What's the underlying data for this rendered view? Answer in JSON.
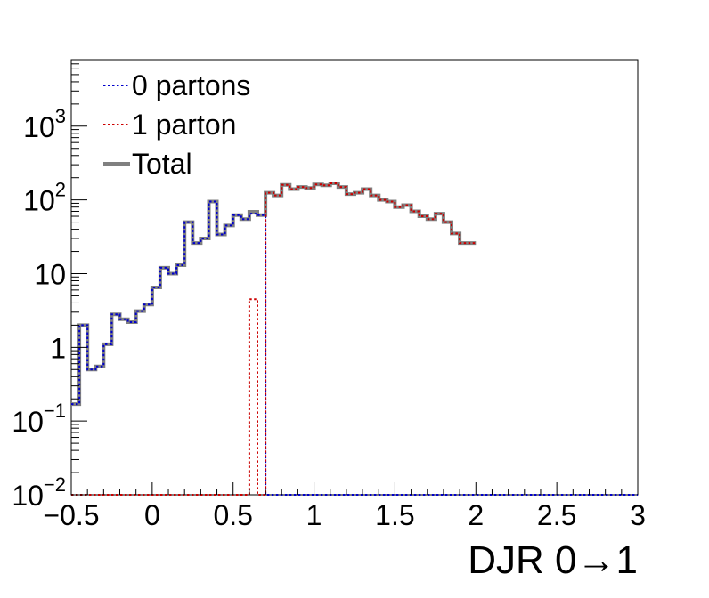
{
  "chart_data": {
    "type": "histogram",
    "title": "",
    "xlabel": "DJR 0→1",
    "ylabel": "",
    "xlim": [
      -0.5,
      3
    ],
    "ylim": [
      0.01,
      8000
    ],
    "yscale": "log",
    "x_ticks": [
      {
        "value": -0.5,
        "label": "−0.5"
      },
      {
        "value": 0,
        "label": "0"
      },
      {
        "value": 0.5,
        "label": "0.5"
      },
      {
        "value": 1,
        "label": "1"
      },
      {
        "value": 1.5,
        "label": "1.5"
      },
      {
        "value": 2,
        "label": "2"
      },
      {
        "value": 2.5,
        "label": "2.5"
      },
      {
        "value": 3,
        "label": "3"
      }
    ],
    "y_ticks": [
      {
        "value": 0.01,
        "base": "10",
        "exp": "−2"
      },
      {
        "value": 0.1,
        "base": "10",
        "exp": "−1"
      },
      {
        "value": 1,
        "base": "1",
        "exp": ""
      },
      {
        "value": 10,
        "base": "10",
        "exp": ""
      },
      {
        "value": 100,
        "base": "10",
        "exp": "2"
      },
      {
        "value": 1000,
        "base": "10",
        "exp": "3"
      }
    ],
    "grid": false,
    "legend_position": "top-left",
    "bin_start": -0.5,
    "bin_width": 0.05,
    "series": [
      {
        "name": "0 partons",
        "color": "#0000cc",
        "style": "dotted",
        "values": [
          0.17,
          2.0,
          0.5,
          0.55,
          1.1,
          2.8,
          2.4,
          2.2,
          3.1,
          3.8,
          6.5,
          12,
          10,
          13,
          50,
          26,
          30,
          95,
          34,
          45,
          62,
          55,
          65,
          62,
          0.01,
          0.01,
          0.01,
          0.01,
          0.01,
          0.01,
          0.01,
          0.01,
          0.01,
          0.01,
          0.01,
          0.01,
          0.01,
          0.01,
          0.01,
          0.01,
          0.01,
          0.01,
          0.01,
          0.01,
          0.01,
          0.01,
          0.01,
          0.01,
          0.01,
          0.01,
          0.01,
          0.01,
          0.01,
          0.01,
          0.01,
          0.01,
          0.01,
          0.01,
          0.01,
          0.01,
          0.01,
          0.01,
          0.01,
          0.01,
          0.01,
          0.01,
          0.01,
          0.01,
          0.01,
          0.01
        ]
      },
      {
        "name": "1 parton",
        "color": "#cc0000",
        "style": "dotted",
        "values": [
          0.01,
          0.01,
          0.01,
          0.01,
          0.01,
          0.01,
          0.01,
          0.01,
          0.01,
          0.01,
          0.01,
          0.01,
          0.01,
          0.01,
          0.01,
          0.01,
          0.01,
          0.01,
          0.01,
          0.01,
          0.01,
          0.01,
          4.5,
          0.01,
          125,
          115,
          160,
          140,
          150,
          145,
          162,
          158,
          168,
          150,
          120,
          125,
          140,
          115,
          100,
          95,
          80,
          85,
          70,
          60,
          55,
          65,
          50,
          35,
          26,
          26
        ]
      },
      {
        "name": "Total",
        "color": "#808080",
        "style": "solid",
        "values": [
          0.17,
          2.0,
          0.5,
          0.55,
          1.1,
          2.8,
          2.4,
          2.2,
          3.1,
          3.8,
          6.5,
          12,
          10,
          13,
          50,
          26,
          30,
          95,
          34,
          45,
          62,
          55,
          69,
          62,
          125,
          115,
          160,
          140,
          150,
          145,
          162,
          158,
          168,
          150,
          120,
          125,
          140,
          115,
          100,
          95,
          80,
          85,
          70,
          60,
          55,
          65,
          50,
          35,
          26,
          26
        ]
      }
    ]
  }
}
